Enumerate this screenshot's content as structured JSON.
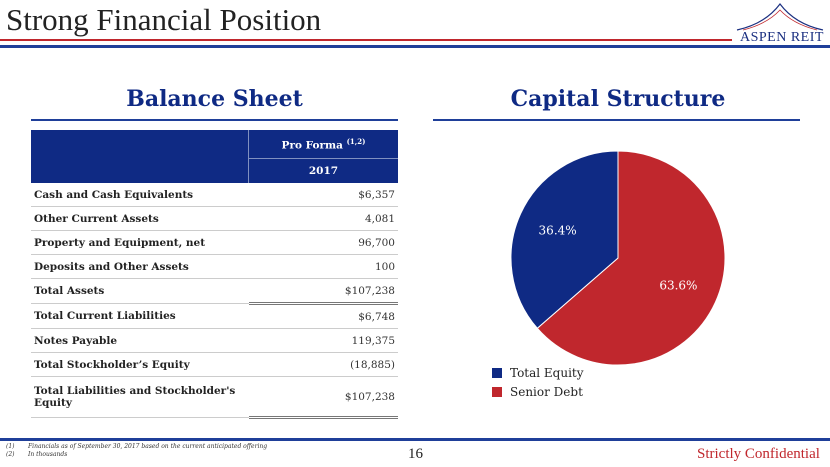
{
  "header": {
    "title": "Strong Financial Position",
    "logo_text": "ASPEN REIT"
  },
  "balance_sheet": {
    "heading": "Balance Sheet",
    "col_header": "Pro Forma",
    "col_sup": "(1,2)",
    "col_year": "2017",
    "rows": [
      {
        "label": "Cash and Cash Equivalents",
        "value": "$6,357"
      },
      {
        "label": "Other Current Assets",
        "value": "4,081"
      },
      {
        "label": "Property and Equipment, net",
        "value": "96,700"
      },
      {
        "label": "Deposits and Other Assets",
        "value": "100"
      },
      {
        "label": "Total Assets",
        "value": "$107,238"
      },
      {
        "label": "Total Current Liabilities",
        "value": "$6,748"
      },
      {
        "label": "Notes Payable",
        "value": "119,375"
      },
      {
        "label": "Total Stockholder’s Equity",
        "value": "(18,885)"
      },
      {
        "label": "Total Liabilities and  Stockholder's Equity",
        "value": "$107,238"
      }
    ]
  },
  "chart_data": {
    "type": "pie",
    "title": "Capital Structure",
    "series": [
      {
        "name": "Total Equity",
        "value": 36.4,
        "label": "36.4%",
        "color": "#0f2a84"
      },
      {
        "name": "Senior Debt",
        "value": 63.6,
        "label": "63.6%",
        "color": "#c0272d"
      }
    ],
    "legend": "bottom-left"
  },
  "footer": {
    "notes": [
      "(1)",
      "Financials as of September 30, 2017 based on the current anticipated offering",
      "(2)",
      "In thousands"
    ],
    "page": "16",
    "confidential": "Strictly Confidential"
  }
}
